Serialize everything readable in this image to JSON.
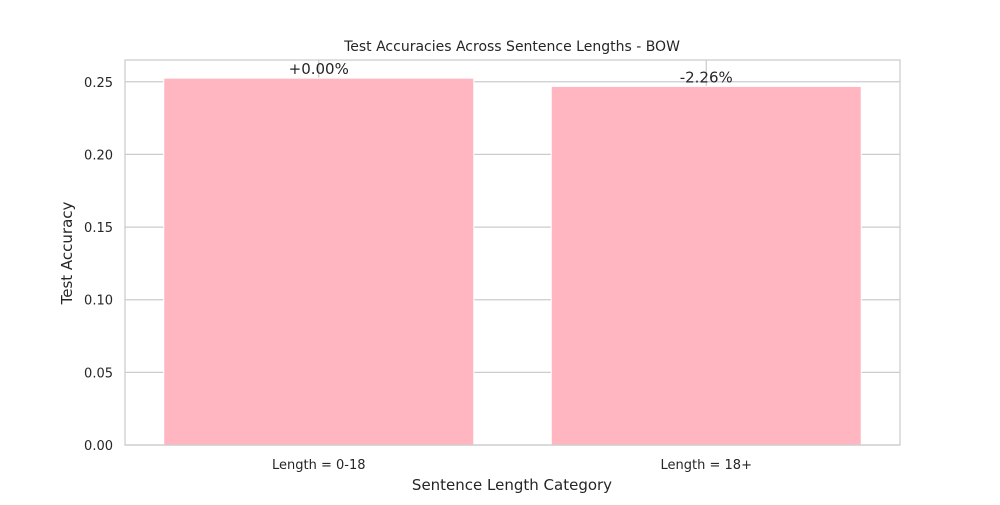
{
  "chart_data": {
    "type": "bar",
    "title": "Test Accuracies Across Sentence Lengths - BOW",
    "xlabel": "Sentence Length Category",
    "ylabel": "Test Accuracy",
    "categories": [
      "Length = 0-18",
      "Length = 18+"
    ],
    "values": [
      0.2525,
      0.2468
    ],
    "data_labels": [
      "+0.00%",
      "-2.26%"
    ],
    "ylim": [
      0,
      0.265
    ],
    "yticks": [
      0.0,
      0.05,
      0.1,
      0.15,
      0.2,
      0.25
    ],
    "ytick_labels": [
      "0.00",
      "0.05",
      "0.10",
      "0.15",
      "0.20",
      "0.25"
    ],
    "grid": true,
    "colors": {
      "bar": "#ffb6c1",
      "grid": "#cccccc",
      "frame": "#cccccc",
      "text": "#262626"
    }
  }
}
